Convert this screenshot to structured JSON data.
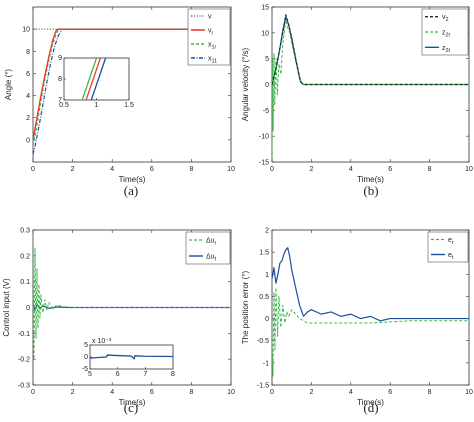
{
  "chart_data": [
    {
      "panel": "a",
      "type": "line",
      "caption": "(a)",
      "xlabel": "Time(s)",
      "ylabel": "Angle (°)",
      "xlim": [
        0,
        10
      ],
      "ylim": [
        -2,
        12
      ],
      "xticks": [
        0,
        2,
        4,
        6,
        8,
        10
      ],
      "yticks": [
        0,
        2,
        4,
        6,
        8,
        10
      ],
      "legend_position": "top-right",
      "series": [
        {
          "name": "v",
          "color": "#555555",
          "dash": "1.2,1.6",
          "width": 1.0,
          "x": [
            0,
            10
          ],
          "y": [
            10,
            10
          ]
        },
        {
          "name": "v",
          "subscript": "r",
          "color": "#e8402c",
          "dash": "",
          "width": 1.4,
          "x": [
            0,
            0.2,
            0.4,
            0.6,
            0.8,
            1.0,
            1.15,
            1.25,
            10
          ],
          "y": [
            0,
            2.0,
            4.0,
            5.8,
            7.5,
            9.0,
            9.8,
            10,
            10
          ]
        },
        {
          "name": "x",
          "subscript": "1r",
          "color": "#3cb84a",
          "dash": "3,2",
          "width": 1.2,
          "x": [
            0,
            0.15,
            0.35,
            0.55,
            0.75,
            0.95,
            1.15,
            1.3,
            10
          ],
          "y": [
            -0.5,
            0.8,
            3.0,
            5.0,
            6.8,
            8.4,
            9.5,
            10,
            10
          ]
        },
        {
          "name": "x",
          "subscript": "11",
          "color": "#1f4f9e",
          "dash": "4,1.5,1,1.5",
          "width": 1.2,
          "x": [
            0,
            0.1,
            0.3,
            0.5,
            0.7,
            0.9,
            1.1,
            1.3,
            1.5,
            10
          ],
          "y": [
            -1.3,
            -0.6,
            1.2,
            3.2,
            5.2,
            7.0,
            8.5,
            9.5,
            10,
            10
          ]
        }
      ],
      "inset": {
        "xlim": [
          0.5,
          1.5
        ],
        "ylim": [
          7,
          9
        ],
        "xticks": [
          0.5,
          1,
          1.5
        ],
        "yticks": [
          7,
          8,
          9
        ],
        "series": [
          {
            "color": "#3cb84a",
            "x": [
              0.78,
              1.0
            ],
            "y": [
              7,
              9
            ]
          },
          {
            "color": "#e8402c",
            "x": [
              0.84,
              1.06
            ],
            "y": [
              7,
              9
            ]
          },
          {
            "color": "#1f4f9e",
            "x": [
              0.92,
              1.14
            ],
            "y": [
              7,
              9
            ]
          }
        ]
      }
    },
    {
      "panel": "b",
      "type": "line",
      "caption": "(b)",
      "xlabel": "Time(s)",
      "ylabel": "Angular velocity (°/s)",
      "xlim": [
        0,
        10
      ],
      "ylim": [
        -15,
        15
      ],
      "xticks": [
        0,
        2,
        4,
        6,
        8,
        10
      ],
      "yticks": [
        -15,
        -10,
        -5,
        0,
        5,
        10,
        15
      ],
      "legend_position": "top-right",
      "series": [
        {
          "name": "v",
          "subscript": "2",
          "color": "#222222",
          "dash": "3,2",
          "width": 1.2,
          "x": [
            0,
            0.2,
            0.4,
            0.6,
            0.7,
            0.85,
            1.0,
            1.2,
            1.45,
            1.6,
            10
          ],
          "y": [
            0,
            3,
            7,
            11,
            13.5,
            11.5,
            9,
            5,
            0.5,
            0,
            0
          ]
        },
        {
          "name": "z",
          "subscript": "2r",
          "color": "#3cb84a",
          "dash": "3,2",
          "width": 1.0,
          "x": [
            0,
            0.03,
            0.06,
            0.1,
            0.14,
            0.2,
            0.27,
            0.35,
            0.45,
            0.55,
            0.62,
            0.7,
            0.8,
            0.9,
            1.0,
            1.2,
            1.4,
            1.6,
            10
          ],
          "y": [
            -14,
            5,
            -9,
            6,
            -4,
            5,
            -2,
            4,
            2,
            8,
            10,
            12.5,
            11,
            10,
            8,
            4.5,
            1,
            0,
            0
          ]
        },
        {
          "name": "z",
          "subscript": "2t",
          "color": "#1f4f9e",
          "dash": "",
          "width": 1.2,
          "x": [
            0,
            0.2,
            0.4,
            0.55,
            0.7,
            0.85,
            1.0,
            1.2,
            1.45,
            1.6,
            10
          ],
          "y": [
            0,
            3,
            7,
            10.5,
            13.2,
            11.5,
            9,
            5,
            0.5,
            0,
            0
          ]
        }
      ]
    },
    {
      "panel": "c",
      "type": "line",
      "caption": "(c)",
      "xlabel": "Time(s)",
      "ylabel": "Control input (V)",
      "xlim": [
        0,
        10
      ],
      "ylim": [
        -0.3,
        0.3
      ],
      "xticks": [
        0,
        2,
        4,
        6,
        8,
        10
      ],
      "yticks": [
        -0.3,
        -0.2,
        -0.1,
        0,
        0.1,
        0.2,
        0.3
      ],
      "legend_position": "top-right",
      "series": [
        {
          "name": "Δu",
          "subscript": "r",
          "color": "#3cb84a",
          "dash": "3,2",
          "width": 1.0,
          "x": [
            0,
            0.05,
            0.1,
            0.15,
            0.2,
            0.25,
            0.3,
            0.35,
            0.4,
            0.5,
            0.6,
            0.7,
            0.8,
            1.0,
            1.2,
            1.5,
            2.0,
            10
          ],
          "y": [
            0.28,
            -0.2,
            0.23,
            -0.12,
            0.15,
            -0.08,
            0.09,
            -0.04,
            0.05,
            -0.02,
            0.03,
            -0.01,
            0.02,
            -0.005,
            0.01,
            0.003,
            0,
            0
          ]
        },
        {
          "name": "Δu",
          "subscript": "t",
          "color": "#1f4f9e",
          "dash": "",
          "width": 1.2,
          "x": [
            0,
            0.1,
            0.2,
            0.35,
            0.5,
            0.8,
            1.2,
            1.8,
            10
          ],
          "y": [
            0.015,
            -0.01,
            0.01,
            -0.005,
            0.006,
            -0.003,
            0.002,
            0,
            0
          ]
        }
      ],
      "inset": {
        "exponent_label": "x 10⁻³",
        "xlim": [
          5,
          8
        ],
        "ylim": [
          -5,
          5
        ],
        "xticks": [
          5,
          6,
          7,
          8
        ],
        "yticks": [
          -5,
          0,
          5
        ],
        "series": [
          {
            "color": "#1f4f9e",
            "x": [
              5,
              5.3,
              5.6,
              5.62,
              6.0,
              6.5,
              6.6,
              6.62,
              7.0,
              8.0
            ],
            "y": [
              -0.5,
              -0.2,
              0.0,
              0.8,
              0.6,
              0.4,
              -0.8,
              0.5,
              0.3,
              0.2
            ]
          }
        ]
      }
    },
    {
      "panel": "d",
      "type": "line",
      "caption": "(d)",
      "xlabel": "Time(s)",
      "ylabel": "The position error (°)",
      "xlim": [
        0,
        10
      ],
      "ylim": [
        -1.5,
        2
      ],
      "xticks": [
        0,
        2,
        4,
        6,
        8,
        10
      ],
      "yticks": [
        -1.5,
        -1,
        -0.5,
        0,
        0.5,
        1,
        1.5,
        2
      ],
      "legend_position": "top-right",
      "series": [
        {
          "name": "e",
          "subscript": "r",
          "color": "#3cb84a",
          "dash": "3,2",
          "width": 1.0,
          "x": [
            0,
            0.05,
            0.1,
            0.15,
            0.2,
            0.28,
            0.35,
            0.45,
            0.55,
            0.65,
            0.75,
            0.85,
            1.0,
            1.2,
            1.4,
            1.6,
            1.8,
            2.0,
            3.0,
            5.0,
            7.0,
            10.0
          ],
          "y": [
            -0.5,
            -1.3,
            0.6,
            -0.7,
            0.7,
            -0.4,
            0.5,
            -0.2,
            0.3,
            -0.1,
            0.15,
            0.05,
            0.2,
            0.1,
            0.0,
            -0.05,
            -0.1,
            -0.1,
            -0.1,
            -0.1,
            -0.05,
            -0.05
          ]
        },
        {
          "name": "e",
          "subscript": "t",
          "color": "#1f4f9e",
          "dash": "",
          "width": 1.2,
          "x": [
            0,
            0.1,
            0.2,
            0.3,
            0.4,
            0.5,
            0.6,
            0.7,
            0.8,
            0.9,
            1.0,
            1.2,
            1.4,
            1.6,
            1.8,
            2.0,
            2.5,
            3.0,
            3.5,
            4.0,
            4.5,
            5.0,
            5.5,
            6.0,
            7.0,
            8.0,
            10.0
          ],
          "y": [
            0.9,
            1.15,
            0.8,
            1.0,
            1.25,
            1.3,
            1.45,
            1.55,
            1.6,
            1.4,
            1.1,
            0.7,
            0.3,
            0.05,
            0.15,
            0.2,
            0.1,
            0.15,
            0.05,
            0.1,
            0.0,
            0.05,
            -0.05,
            0.0,
            0.0,
            0.0,
            0.0
          ]
        }
      ]
    }
  ]
}
